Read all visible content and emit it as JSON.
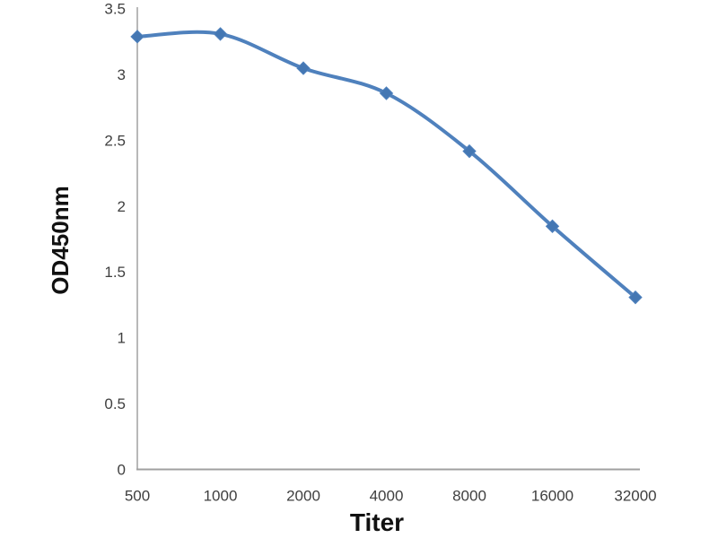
{
  "chart_data": {
    "type": "line",
    "title": "",
    "categories": [
      "500",
      "1000",
      "2000",
      "4000",
      "8000",
      "16000",
      "32000"
    ],
    "series": [
      {
        "name": "OD450nm",
        "values": [
          3.29,
          3.31,
          3.05,
          2.86,
          2.42,
          1.85,
          1.31
        ]
      }
    ],
    "xlabel": "Titer",
    "ylabel": "OD450nm",
    "ylim": [
      0,
      3.5
    ],
    "y_ticks": [
      0,
      0.5,
      1,
      1.5,
      2,
      2.5,
      3,
      3.5
    ],
    "grid": false,
    "legend_position": "none",
    "marker": "diamond",
    "line_smoothing": true,
    "colors": {
      "line": "#4f81bd",
      "marker": "#4477b3",
      "axis": "#a0a0a0",
      "tick_text": "#3f3f3f",
      "axis_title_text": "#111111",
      "background": "#ffffff"
    }
  }
}
